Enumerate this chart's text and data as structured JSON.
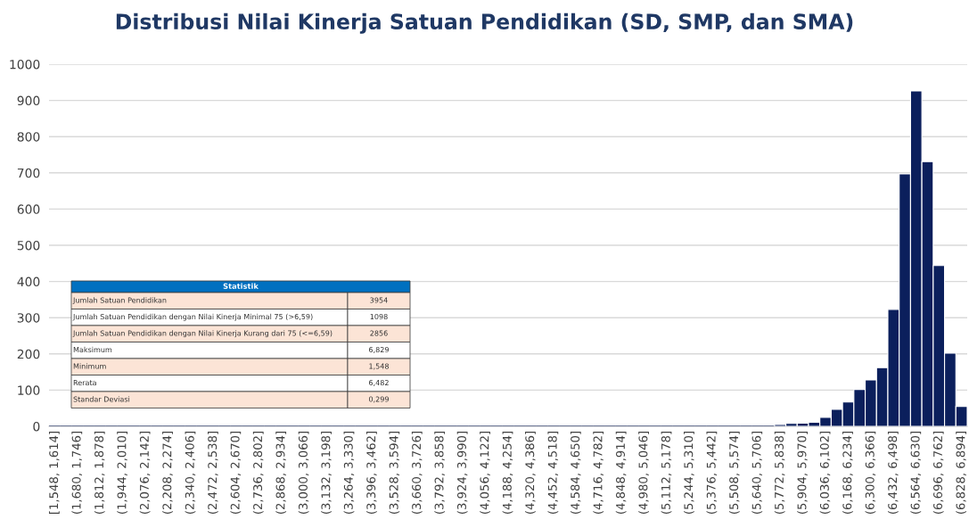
{
  "chart_data": {
    "type": "bar",
    "title": "Distribusi Nilai Kinerja Satuan Pendidikan (SD, SMP, dan SMA)",
    "categories": [
      "[1,548, 1,614]",
      null,
      "(1,680, 1,746]",
      null,
      "(1,812, 1,878]",
      null,
      "(1,944, 2,010]",
      null,
      "(2,076, 2,142]",
      null,
      "(2,208, 2,274]",
      null,
      "(2,340, 2,406]",
      null,
      "(2,472, 2,538]",
      null,
      "(2,604, 2,670]",
      null,
      "(2,736, 2,802]",
      null,
      "(2,868, 2,934]",
      null,
      "(3,000, 3,066]",
      null,
      "(3,132, 3,198]",
      null,
      "(3,264, 3,330]",
      null,
      "(3,396, 3,462]",
      null,
      "(3,528, 3,594]",
      null,
      "(3,660, 3,726]",
      null,
      "(3,792, 3,858]",
      null,
      "(3,924, 3,990]",
      null,
      "(4,056, 4,122]",
      null,
      "(4,188, 4,254]",
      null,
      "(4,320, 4,386]",
      null,
      "(4,452, 4,518]",
      null,
      "(4,584, 4,650]",
      null,
      "(4,716, 4,782]",
      null,
      "(4,848, 4,914]",
      null,
      "(4,980, 5,046]",
      null,
      "(5,112, 5,178]",
      null,
      "(5,244, 5,310]",
      null,
      "(5,376, 5,442]",
      null,
      "(5,508, 5,574]",
      null,
      "(5,640, 5,706]",
      null,
      "(5,772, 5,838]",
      null,
      "(5,904, 5,970]",
      null,
      "(6,036, 6,102]",
      null,
      "(6,168, 6,234]",
      null,
      "(6,300, 6,366]",
      null,
      "(6,432, 6,498]",
      null,
      "(6,564, 6,630]",
      null,
      "(6,696, 6,762]",
      null,
      "(6,828, 6,894]"
    ],
    "values": [
      0,
      0,
      0,
      0,
      0,
      0,
      0,
      0,
      0,
      0,
      0,
      0,
      0,
      0,
      0,
      0,
      0,
      0,
      0,
      0,
      0,
      0,
      0,
      0,
      0,
      0,
      0,
      0,
      0,
      0,
      0,
      0,
      0,
      0,
      0,
      0,
      0,
      0,
      0,
      0,
      0,
      0,
      0,
      0,
      0,
      0,
      0,
      0,
      0,
      0,
      0,
      0,
      0,
      0,
      0,
      0,
      0,
      0,
      0,
      0,
      0,
      0,
      0,
      0,
      5,
      8,
      9,
      11,
      25,
      47,
      67,
      102,
      128,
      162,
      323,
      697,
      926,
      731,
      444,
      202,
      55
    ],
    "color": "#0b1f5c",
    "ylim": [
      0,
      1000
    ],
    "yticks": [
      0,
      100,
      200,
      300,
      400,
      500,
      600,
      700,
      800,
      900,
      1000
    ],
    "grid": "y",
    "annotations": [
      "Statistik",
      "Jumlah Satuan Pendidikan",
      "3954",
      "Jumlah Satuan Pendidikan dengan Nilai Kinerja Minimal 75 (>6,59)",
      "1098",
      "Jumlah Satuan Pendidikan dengan Nilai Kinerja Kurang dari 75 (<=6,59)",
      "2856",
      "Maksimum",
      "6,829",
      "Minimum",
      "1,548",
      "Rerata",
      "6,482",
      "Standar Deviasi",
      "0,299"
    ]
  }
}
